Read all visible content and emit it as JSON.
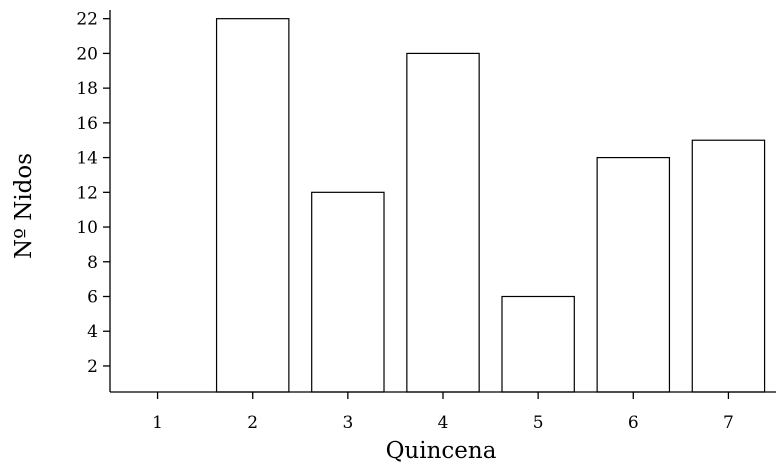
{
  "chart_data": {
    "type": "bar",
    "categories": [
      "1",
      "2",
      "3",
      "4",
      "5",
      "6",
      "7"
    ],
    "values": [
      0,
      22,
      12,
      20,
      6,
      14,
      15
    ],
    "xlabel": "Quincena",
    "ylabel": "Nº Nidos",
    "ylim": [
      0.5,
      22.5
    ],
    "yticks": [
      2,
      4,
      6,
      8,
      10,
      12,
      14,
      16,
      18,
      20,
      22
    ],
    "grid": false,
    "bar_fill": "#ffffff",
    "bar_stroke": "#000000"
  }
}
